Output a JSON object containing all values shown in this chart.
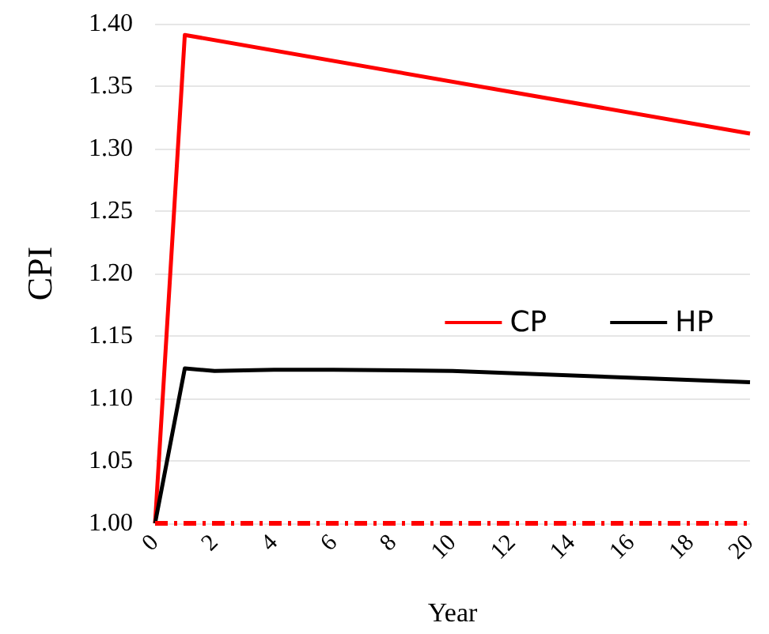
{
  "chart_data": {
    "type": "line",
    "xlabel": "Year",
    "ylabel": "CPI",
    "xlim": [
      0,
      20
    ],
    "xticks": [
      0,
      2,
      4,
      6,
      8,
      10,
      12,
      14,
      16,
      18,
      20
    ],
    "ylim": [
      1.0,
      1.4
    ],
    "yticks": [
      {
        "value": 1.0,
        "label": "1.00"
      },
      1.05,
      {
        "value": 1.1,
        "label": "1.10"
      },
      1.15,
      {
        "value": 1.2,
        "label": "1.20"
      },
      1.25,
      {
        "value": 1.3,
        "label": "1.30"
      },
      1.35,
      {
        "value": 1.4,
        "label": "1.40"
      }
    ],
    "grid": "y",
    "legend": "right",
    "marker": "none",
    "line_style": "solid",
    "series": [
      {
        "name": "CP",
        "color": "#ff0000",
        "x": [
          0,
          1,
          20
        ],
        "values": [
          1.0,
          1.391,
          1.312
        ]
      },
      {
        "name": "HP",
        "color": "#000000",
        "x": [
          0,
          1,
          2,
          4,
          6,
          10,
          20
        ],
        "values": [
          1.0,
          1.124,
          1.122,
          1.123,
          1.123,
          1.122,
          1.113
        ]
      }
    ],
    "ref_lines": [
      {
        "axis": "y",
        "value": 1.0,
        "color": "#ff0000",
        "line_style": "dashed"
      }
    ]
  }
}
